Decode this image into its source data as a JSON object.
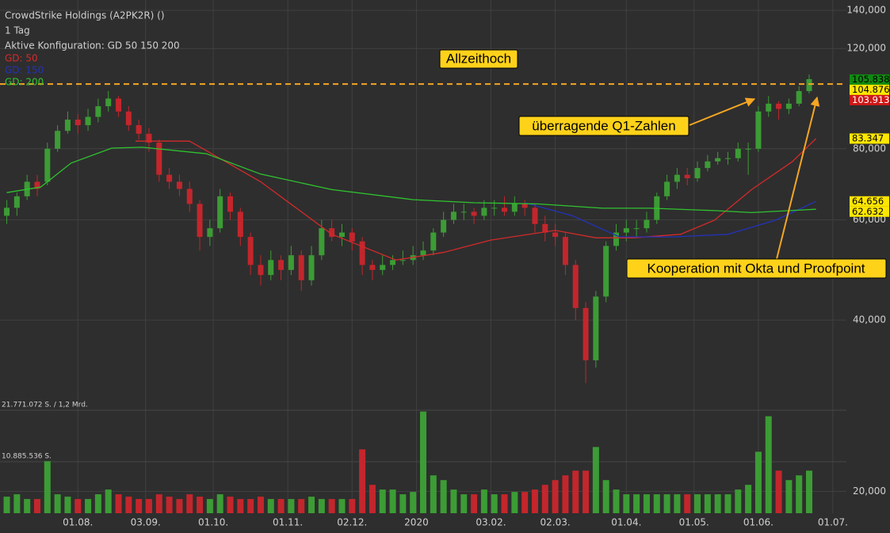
{
  "chart_data": {
    "type": "candlestick",
    "title": "CrowdStrike Holdings (A2PK2R) ()",
    "subtitle": "1 Tag",
    "config": "Aktive Konfiguration: GD 50 150 200",
    "log_y": true,
    "grid": true,
    "up_color": "#3c9c35",
    "down_color": "#c3262c",
    "ylim": [
      18.2,
      146
    ],
    "yticks": [
      {
        "value": 20,
        "label": "20,000"
      },
      {
        "value": 40,
        "label": "40,000"
      },
      {
        "value": 60,
        "label": "60,000"
      },
      {
        "value": 80,
        "label": "80,000"
      },
      {
        "value": 120,
        "label": "120,000"
      },
      {
        "value": 140,
        "label": "140,000"
      }
    ],
    "xlim": [
      -2,
      248
    ],
    "xticks": [
      {
        "value": 21,
        "label": "01.08."
      },
      {
        "value": 41,
        "label": "03.09."
      },
      {
        "value": 61,
        "label": "01.10."
      },
      {
        "value": 83,
        "label": "01.11."
      },
      {
        "value": 102,
        "label": "02.12."
      },
      {
        "value": 121,
        "label": "2020"
      },
      {
        "value": 143,
        "label": "03.02."
      },
      {
        "value": 162,
        "label": "02.03."
      },
      {
        "value": 183,
        "label": "01.04."
      },
      {
        "value": 203,
        "label": "01.05."
      },
      {
        "value": 222,
        "label": "01.06."
      },
      {
        "value": 244,
        "label": "01.07."
      }
    ],
    "x": [
      0,
      3,
      6,
      9,
      12,
      15,
      18,
      21,
      24,
      27,
      30,
      33,
      36,
      39,
      42,
      45,
      48,
      51,
      54,
      57,
      60,
      63,
      66,
      69,
      72,
      75,
      78,
      81,
      84,
      87,
      90,
      93,
      96,
      99,
      102,
      105,
      108,
      111,
      114,
      117,
      120,
      123,
      126,
      129,
      132,
      135,
      138,
      141,
      144,
      147,
      150,
      153,
      156,
      159,
      162,
      165,
      168,
      171,
      174,
      177,
      180,
      183,
      186,
      189,
      192,
      195,
      198,
      201,
      204,
      207,
      210,
      213,
      216,
      219,
      222,
      225,
      228,
      231,
      234,
      237
    ],
    "open": [
      61,
      63,
      66,
      70,
      70,
      80,
      86,
      90,
      88,
      91,
      95,
      98,
      93,
      88,
      85,
      82,
      72,
      70,
      68,
      64,
      56,
      58,
      66,
      62,
      56,
      50,
      48,
      51,
      49,
      52,
      47,
      52,
      58,
      56,
      57,
      55,
      50,
      49,
      50,
      51,
      51,
      52,
      53,
      57,
      60,
      62,
      62,
      61,
      63,
      63,
      62,
      64,
      63,
      59,
      57,
      56,
      50,
      42,
      34,
      44,
      54,
      57,
      58,
      58,
      60,
      66,
      70,
      72,
      71,
      74,
      76,
      77,
      77,
      80,
      80,
      93,
      96,
      94,
      96,
      101
    ],
    "high": [
      65,
      67,
      72,
      72,
      82,
      88,
      93,
      92,
      94,
      98,
      101,
      99,
      95,
      90,
      87,
      83,
      74,
      72,
      70,
      65,
      60,
      68,
      67,
      63,
      57,
      52,
      53,
      52,
      54,
      53,
      54,
      60,
      60,
      59,
      58,
      56,
      51,
      52,
      52,
      53,
      54,
      55,
      58,
      62,
      64,
      64,
      63,
      65,
      65,
      66,
      66,
      65,
      64,
      61,
      59,
      57,
      51,
      43,
      45,
      55,
      59,
      60,
      60,
      62,
      67,
      72,
      74,
      74,
      76,
      78,
      79,
      79,
      82,
      82,
      95,
      99,
      97,
      98,
      103,
      108
    ],
    "low": [
      59,
      61,
      65,
      66,
      69,
      79,
      85,
      85,
      86,
      89,
      93,
      91,
      86,
      83,
      79,
      70,
      68,
      66,
      62,
      53,
      54,
      57,
      60,
      54,
      48,
      46,
      47,
      47,
      48,
      45,
      46,
      51,
      55,
      54,
      53,
      48,
      47,
      48,
      49,
      50,
      50,
      51,
      52,
      56,
      59,
      60,
      59,
      60,
      61,
      61,
      61,
      61,
      57,
      55,
      54,
      48,
      40,
      31,
      33,
      43,
      53,
      55,
      56,
      57,
      59,
      65,
      68,
      69,
      70,
      73,
      75,
      75,
      76,
      72,
      79,
      91,
      90,
      92,
      95,
      100
    ],
    "close": [
      63,
      66,
      70,
      68,
      80,
      86,
      90,
      88,
      91,
      95,
      98,
      93,
      88,
      85,
      82,
      72,
      70,
      68,
      64,
      56,
      58,
      66,
      62,
      56,
      50,
      48,
      51,
      49,
      52,
      47,
      52,
      58,
      56,
      57,
      55,
      50,
      49,
      50,
      51,
      51,
      52,
      53,
      57,
      60,
      62,
      62,
      61,
      63,
      63,
      62,
      64,
      63,
      59,
      57,
      56,
      50,
      42,
      34,
      44,
      54,
      57,
      58,
      58,
      60,
      66,
      70,
      72,
      71,
      74,
      76,
      77,
      77,
      80,
      80,
      93,
      96,
      94,
      96,
      101,
      106
    ],
    "volume": {
      "ylim": [
        0,
        21771072
      ],
      "yticks": [
        {
          "value": 21771072,
          "label": "21.771.072 S. / 1,2 Mrd."
        },
        {
          "value": 10885536,
          "label": "10.885.536 S."
        }
      ],
      "values": [
        3500000,
        4000000,
        3000000,
        3000000,
        11000000,
        4000000,
        3500000,
        3000000,
        3000000,
        4000000,
        5000000,
        4000000,
        3500000,
        3000000,
        3000000,
        4000000,
        3500000,
        3000000,
        4000000,
        3500000,
        3000000,
        4000000,
        3500000,
        3000000,
        3000000,
        3500000,
        3000000,
        3000000,
        3000000,
        3000000,
        3500000,
        3000000,
        3000000,
        3000000,
        3000000,
        13500000,
        6000000,
        5000000,
        5000000,
        4000000,
        4500000,
        21500000,
        8000000,
        7000000,
        5000000,
        4000000,
        4000000,
        5000000,
        4000000,
        4000000,
        4500000,
        4500000,
        5000000,
        6000000,
        7000000,
        8000000,
        9000000,
        9000000,
        14000000,
        7000000,
        5000000,
        4000000,
        4000000,
        4000000,
        4000000,
        4000000,
        4000000,
        4000000,
        4000000,
        4000000,
        4000000,
        4000000,
        5000000,
        6000000,
        13000000,
        20500000,
        9000000,
        7000000,
        8000000,
        9000000
      ]
    },
    "series": [
      {
        "name": "GD: 50",
        "color": "#d42a2a",
        "x": [
          38,
          54,
          75,
          96,
          115,
          129,
          143,
          162,
          174,
          185,
          199,
          209,
          220,
          232,
          239
        ],
        "values": [
          82.5,
          82.5,
          70,
          56.6,
          51,
          52.6,
          55.3,
          57.5,
          55.8,
          55.8,
          56.6,
          59.9,
          67.8,
          75.9,
          83.347
        ]
      },
      {
        "name": "GD: 150",
        "color": "#2233b8",
        "x": [
          153,
          167,
          181,
          197,
          213,
          227,
          239
        ],
        "values": [
          64.3,
          61,
          56,
          56,
          56.6,
          59.9,
          64.656
        ]
      },
      {
        "name": "GD: 200",
        "color": "#2ec42e",
        "x": [
          0,
          10,
          19,
          31,
          40,
          59,
          75,
          96,
          120,
          138,
          157,
          176,
          190,
          209,
          220,
          239
        ],
        "values": [
          67,
          68.5,
          75.5,
          80.2,
          80.5,
          78.4,
          72.2,
          67.8,
          65.1,
          64.3,
          64,
          62.9,
          62.9,
          62.3,
          61.8,
          62.632
        ]
      }
    ],
    "price_labels": [
      {
        "value": 105.838,
        "background": "#108a10",
        "text_color": "#000000"
      },
      {
        "value": 104.876,
        "background": "#ffe600",
        "text_color": "#000000"
      },
      {
        "value": 103.913,
        "background": "#d01818",
        "text_color": "#ffffff",
        "line_color": "#f5a623"
      },
      {
        "value": 83.347,
        "background": "#ffe600",
        "text_color": "#000000"
      },
      {
        "value": 64.656,
        "background": "#ffe600",
        "text_color": "#000000"
      },
      {
        "value": 62.632,
        "background": "#ffe600",
        "text_color": "#000000"
      }
    ],
    "annotations": [
      "Allzeithoch",
      "überragende Q1-Zahlen",
      "Kooperation mit Okta und Proofpoint"
    ]
  }
}
